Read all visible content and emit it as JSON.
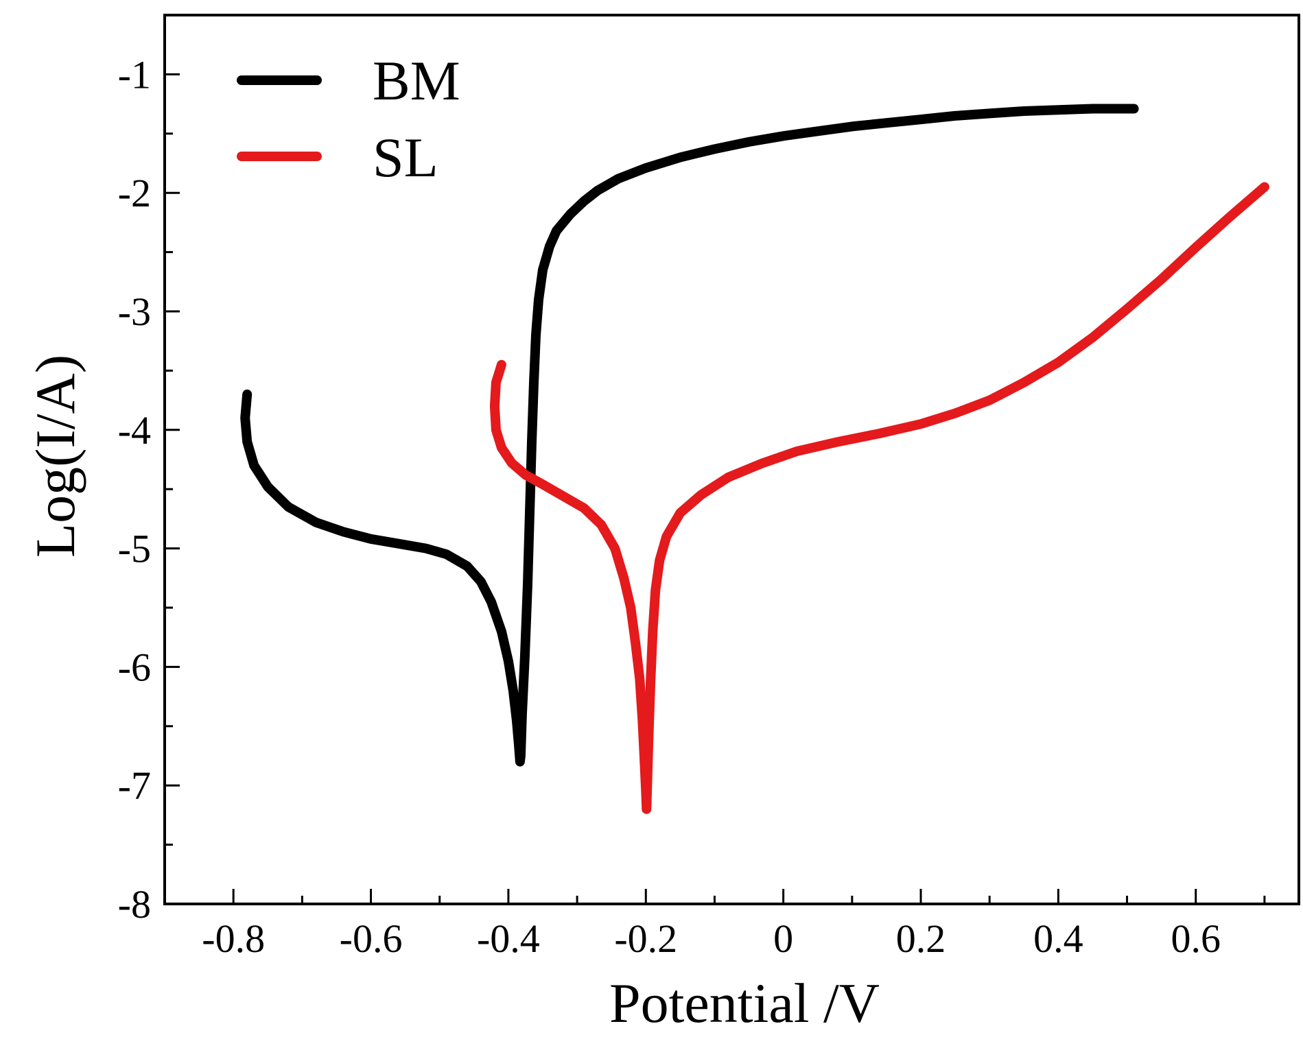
{
  "chart_data": {
    "type": "line",
    "title": "",
    "xlabel": "Potential /V",
    "ylabel": "Log(I/A)",
    "xlim": [
      -0.9,
      0.75
    ],
    "ylim": [
      -8,
      -0.5
    ],
    "xticks": [
      -0.8,
      -0.6,
      -0.4,
      -0.2,
      0,
      0.2,
      0.4,
      0.6
    ],
    "xtick_labels": [
      "-0.8",
      "-0.6",
      "-0.4",
      "-0.2",
      "0",
      "0.2",
      "0.4",
      "0.6"
    ],
    "yticks": [
      -8,
      -7,
      -6,
      -5,
      -4,
      -3,
      -2,
      -1
    ],
    "ytick_labels": [
      "-8",
      "-7",
      "-6",
      "-5",
      "-4",
      "-3",
      "-2",
      "-1"
    ],
    "grid": false,
    "legend_position": "top-left",
    "series": [
      {
        "name": "BM",
        "color": "#000000",
        "x": [
          -0.78,
          -0.783,
          -0.78,
          -0.77,
          -0.75,
          -0.72,
          -0.68,
          -0.64,
          -0.6,
          -0.56,
          -0.52,
          -0.49,
          -0.46,
          -0.44,
          -0.425,
          -0.41,
          -0.4,
          -0.393,
          -0.388,
          -0.385,
          -0.383,
          -0.382,
          -0.38,
          -0.376,
          -0.372,
          -0.369,
          -0.366,
          -0.363,
          -0.36,
          -0.356,
          -0.35,
          -0.34,
          -0.33,
          -0.31,
          -0.29,
          -0.27,
          -0.24,
          -0.2,
          -0.15,
          -0.1,
          -0.05,
          0.0,
          0.05,
          0.1,
          0.15,
          0.2,
          0.25,
          0.3,
          0.35,
          0.4,
          0.45,
          0.51
        ],
        "y": [
          -3.7,
          -3.9,
          -4.1,
          -4.3,
          -4.48,
          -4.65,
          -4.78,
          -4.86,
          -4.92,
          -4.96,
          -5.0,
          -5.05,
          -5.15,
          -5.28,
          -5.45,
          -5.7,
          -5.95,
          -6.2,
          -6.45,
          -6.65,
          -6.8,
          -6.75,
          -6.4,
          -5.9,
          -5.3,
          -4.7,
          -4.1,
          -3.6,
          -3.2,
          -2.9,
          -2.65,
          -2.45,
          -2.32,
          -2.18,
          -2.07,
          -1.98,
          -1.88,
          -1.79,
          -1.7,
          -1.63,
          -1.57,
          -1.52,
          -1.48,
          -1.44,
          -1.41,
          -1.38,
          -1.35,
          -1.33,
          -1.31,
          -1.3,
          -1.29,
          -1.29
        ]
      },
      {
        "name": "SL",
        "color": "#e41a1c",
        "x": [
          -0.41,
          -0.418,
          -0.42,
          -0.418,
          -0.41,
          -0.395,
          -0.375,
          -0.35,
          -0.32,
          -0.29,
          -0.265,
          -0.245,
          -0.232,
          -0.222,
          -0.215,
          -0.209,
          -0.205,
          -0.202,
          -0.2,
          -0.199,
          -0.198,
          -0.196,
          -0.193,
          -0.19,
          -0.186,
          -0.18,
          -0.17,
          -0.15,
          -0.12,
          -0.08,
          -0.03,
          0.02,
          0.08,
          0.14,
          0.2,
          0.25,
          0.3,
          0.35,
          0.4,
          0.45,
          0.5,
          0.55,
          0.6,
          0.65,
          0.7
        ],
        "y": [
          -3.45,
          -3.6,
          -3.8,
          -4.0,
          -4.15,
          -4.28,
          -4.38,
          -4.46,
          -4.56,
          -4.66,
          -4.8,
          -5.0,
          -5.25,
          -5.5,
          -5.8,
          -6.1,
          -6.45,
          -6.8,
          -7.05,
          -7.2,
          -7.0,
          -6.6,
          -6.1,
          -5.7,
          -5.35,
          -5.1,
          -4.9,
          -4.7,
          -4.55,
          -4.4,
          -4.28,
          -4.18,
          -4.1,
          -4.03,
          -3.95,
          -3.86,
          -3.75,
          -3.6,
          -3.43,
          -3.22,
          -2.98,
          -2.73,
          -2.46,
          -2.2,
          -1.95
        ]
      }
    ]
  }
}
